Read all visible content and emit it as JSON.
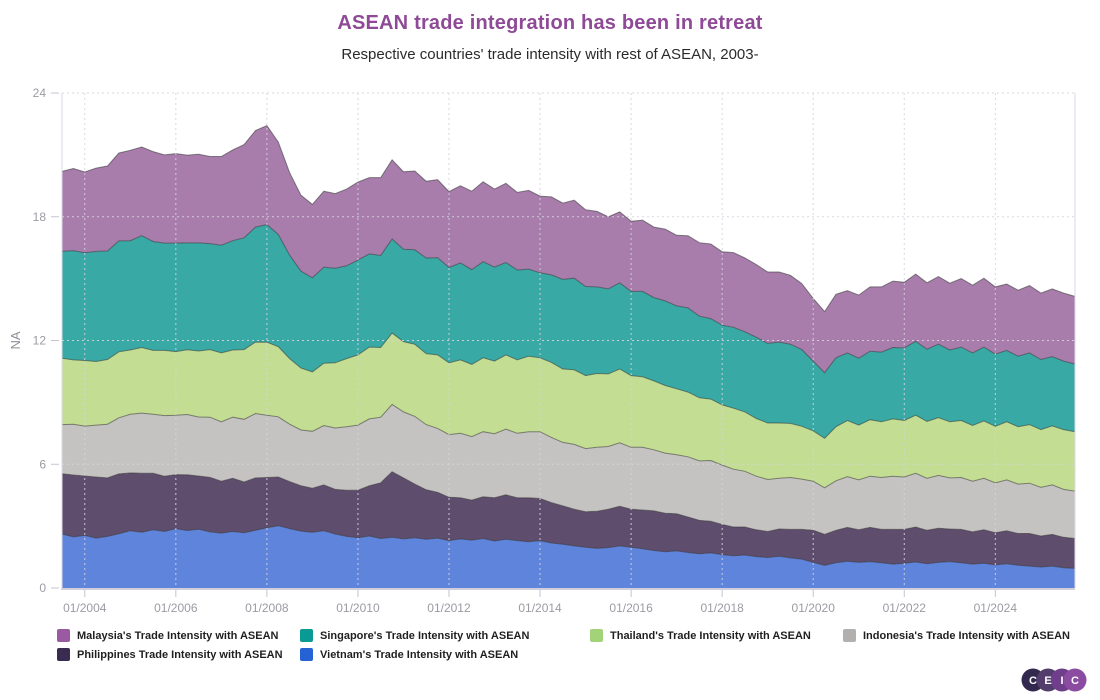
{
  "header": {
    "title": "ASEAN trade integration has been in retreat",
    "subtitle": "Respective countries' trade intensity with rest of ASEAN, 2003-",
    "title_color": "#8e4a96"
  },
  "chart_data": {
    "type": "area",
    "stacked": true,
    "title": "ASEAN trade integration has been in retreat",
    "subtitle": "Respective countries' trade intensity with rest of ASEAN, 2003-",
    "ylabel": "NA",
    "xlabel": "",
    "grid": "dotted",
    "legend_position": "bottom",
    "x_start": 2003.5,
    "x_step": 0.25,
    "x_range": [
      2003.5,
      2025.75
    ],
    "y_range": [
      0,
      24
    ],
    "y_ticks": [
      0,
      6,
      12,
      18,
      24
    ],
    "x_ticks": [
      {
        "value": 2004,
        "label": "01/2004"
      },
      {
        "value": 2006,
        "label": "01/2006"
      },
      {
        "value": 2008,
        "label": "01/2008"
      },
      {
        "value": 2010,
        "label": "01/2010"
      },
      {
        "value": 2012,
        "label": "01/2012"
      },
      {
        "value": 2014,
        "label": "01/2014"
      },
      {
        "value": 2016,
        "label": "01/2016"
      },
      {
        "value": 2018,
        "label": "01/2018"
      },
      {
        "value": 2020,
        "label": "01/2020"
      },
      {
        "value": 2022,
        "label": "01/2022"
      },
      {
        "value": 2024,
        "label": "01/2024"
      }
    ],
    "axis_colors": {
      "tick_label": "#9b9ba3",
      "axis_line": "#dcd9e4",
      "bottom_line": "#d2cfdd",
      "tick_mark": "#c6c3d0",
      "gridline": "#d6d3de",
      "band_outline": "rgba(50,50,50,0.55)"
    },
    "stack_order_bottom_to_top": [
      "Vietnam's Trade Intensity with ASEAN",
      "Philippines Trade Intensity with ASEAN",
      "Indonesia's Trade Intensity with ASEAN",
      "Thailand's Trade Intensity with ASEAN",
      "Singapore's Trade Intensity with ASEAN",
      "Malaysia's Trade Intensity with ASEAN"
    ],
    "series": [
      {
        "name": "Malaysia's Trade Intensity with ASEAN",
        "color": "#9a5aa2",
        "fill": "#a87dac",
        "values": [
          3.88,
          3.98,
          3.92,
          4.04,
          4.12,
          4.26,
          4.38,
          4.3,
          4.36,
          4.28,
          4.34,
          4.26,
          4.3,
          4.22,
          4.3,
          4.4,
          4.52,
          4.68,
          4.8,
          4.48,
          4.0,
          3.68,
          3.56,
          3.68,
          3.62,
          3.72,
          3.78,
          3.7,
          3.78,
          3.84,
          3.76,
          3.82,
          3.72,
          3.78,
          3.68,
          3.74,
          3.8,
          3.88,
          3.78,
          3.84,
          3.76,
          3.82,
          3.72,
          3.78,
          3.7,
          3.78,
          3.72,
          3.66,
          3.5,
          3.44,
          3.4,
          3.46,
          3.42,
          3.48,
          3.42,
          3.5,
          3.56,
          3.62,
          3.56,
          3.62,
          3.58,
          3.52,
          3.46,
          3.4,
          3.34,
          3.2,
          3.04,
          2.96,
          3.08,
          3.02,
          3.06,
          3.12,
          3.16,
          3.22,
          3.18,
          3.26,
          3.22,
          3.28,
          3.24,
          3.32,
          3.28,
          3.34,
          3.26,
          3.22,
          3.2,
          3.26,
          3.22,
          3.28,
          3.3,
          3.28
        ]
      },
      {
        "name": "Singapore's Trade Intensity with ASEAN",
        "color": "#0a9a94",
        "fill": "#38a9a4",
        "values": [
          5.18,
          5.3,
          5.22,
          5.34,
          5.26,
          5.38,
          5.3,
          5.42,
          5.28,
          5.2,
          5.26,
          5.18,
          5.24,
          5.14,
          5.22,
          5.3,
          5.42,
          5.58,
          5.7,
          5.44,
          5.02,
          4.7,
          4.56,
          4.66,
          4.58,
          4.5,
          4.6,
          4.52,
          4.46,
          4.56,
          4.48,
          4.58,
          4.64,
          4.72,
          4.62,
          4.7,
          4.6,
          4.66,
          4.56,
          4.48,
          4.36,
          4.22,
          4.12,
          4.24,
          4.34,
          4.44,
          4.32,
          4.2,
          4.12,
          4.18,
          4.08,
          4.14,
          4.04,
          4.1,
          4.02,
          4.08,
          3.96,
          3.9,
          3.86,
          3.92,
          3.88,
          3.94,
          3.86,
          3.92,
          3.84,
          3.72,
          3.38,
          3.18,
          3.34,
          3.28,
          3.24,
          3.32,
          3.38,
          3.46,
          3.52,
          3.58,
          3.5,
          3.56,
          3.48,
          3.56,
          3.52,
          3.58,
          3.5,
          3.46,
          3.42,
          3.48,
          3.4,
          3.36,
          3.32,
          3.28
        ]
      },
      {
        "name": "Thailand's Trade Intensity with ASEAN",
        "color": "#a3d378",
        "fill": "#c3de92",
        "values": [
          3.22,
          3.12,
          3.18,
          3.08,
          3.14,
          3.2,
          3.12,
          3.18,
          3.1,
          3.16,
          3.08,
          3.14,
          3.2,
          3.28,
          3.34,
          3.26,
          3.38,
          3.46,
          3.54,
          3.4,
          3.18,
          3.0,
          2.88,
          3.02,
          3.16,
          3.3,
          3.4,
          3.48,
          3.38,
          3.46,
          3.4,
          3.5,
          3.44,
          3.56,
          3.48,
          3.56,
          3.5,
          3.58,
          3.52,
          3.6,
          3.56,
          3.66,
          3.58,
          3.64,
          3.56,
          3.62,
          3.54,
          3.58,
          3.52,
          3.58,
          3.48,
          3.42,
          3.34,
          3.28,
          3.2,
          3.14,
          3.06,
          2.98,
          2.92,
          2.96,
          2.88,
          2.8,
          2.74,
          2.68,
          2.62,
          2.56,
          2.44,
          2.4,
          2.62,
          2.72,
          2.66,
          2.74,
          2.7,
          2.78,
          2.74,
          2.82,
          2.76,
          2.8,
          2.72,
          2.76,
          2.7,
          2.78,
          2.74,
          2.82,
          2.78,
          2.84,
          2.8,
          2.86,
          2.9,
          2.88
        ]
      },
      {
        "name": "Indonesia's Trade Intensity with ASEAN",
        "color": "#b2b0ae",
        "fill": "#c5c3c1",
        "values": [
          2.38,
          2.46,
          2.42,
          2.52,
          2.6,
          2.72,
          2.84,
          2.92,
          2.86,
          2.94,
          2.88,
          2.92,
          2.86,
          2.92,
          2.88,
          2.96,
          3.04,
          3.12,
          3.02,
          2.92,
          2.78,
          2.7,
          2.76,
          2.88,
          2.98,
          3.08,
          3.16,
          3.24,
          3.18,
          3.26,
          3.2,
          3.28,
          3.16,
          3.1,
          3.04,
          3.12,
          3.08,
          3.16,
          3.1,
          3.18,
          3.12,
          3.2,
          3.24,
          3.16,
          3.08,
          3.14,
          3.06,
          3.1,
          3.04,
          3.08,
          3.0,
          3.04,
          2.96,
          2.92,
          2.86,
          2.92,
          2.88,
          2.94,
          2.88,
          2.8,
          2.7,
          2.6,
          2.52,
          2.46,
          2.52,
          2.44,
          2.38,
          2.26,
          2.4,
          2.46,
          2.42,
          2.48,
          2.52,
          2.58,
          2.54,
          2.6,
          2.52,
          2.56,
          2.48,
          2.52,
          2.46,
          2.5,
          2.42,
          2.46,
          2.4,
          2.44,
          2.36,
          2.4,
          2.32,
          2.3
        ]
      },
      {
        "name": "Philippines Trade Intensity with ASEAN",
        "color": "#3a2b52",
        "fill": "#5f4d6e",
        "values": [
          2.92,
          3.0,
          2.88,
          2.96,
          2.84,
          2.9,
          2.8,
          2.86,
          2.74,
          2.68,
          2.62,
          2.7,
          2.58,
          2.64,
          2.52,
          2.58,
          2.46,
          2.54,
          2.44,
          2.36,
          2.28,
          2.2,
          2.14,
          2.22,
          2.16,
          2.24,
          2.3,
          2.44,
          2.7,
          3.18,
          2.96,
          2.6,
          2.4,
          2.22,
          2.1,
          2.0,
          1.94,
          2.02,
          2.1,
          2.16,
          2.08,
          2.14,
          2.04,
          1.96,
          1.86,
          1.78,
          1.72,
          1.8,
          1.86,
          1.92,
          1.84,
          1.88,
          1.92,
          1.86,
          1.8,
          1.72,
          1.62,
          1.54,
          1.46,
          1.4,
          1.36,
          1.3,
          1.26,
          1.32,
          1.38,
          1.44,
          1.56,
          1.5,
          1.58,
          1.64,
          1.58,
          1.66,
          1.62,
          1.68,
          1.64,
          1.7,
          1.62,
          1.66,
          1.58,
          1.62,
          1.56,
          1.62,
          1.56,
          1.6,
          1.54,
          1.58,
          1.5,
          1.54,
          1.48,
          1.45
        ]
      },
      {
        "name": "Vietnam's Trade Intensity with ASEAN",
        "color": "#2563d4",
        "fill": "#5f84dc",
        "values": [
          2.62,
          2.48,
          2.55,
          2.42,
          2.5,
          2.63,
          2.78,
          2.7,
          2.82,
          2.74,
          2.88,
          2.79,
          2.85,
          2.72,
          2.66,
          2.74,
          2.68,
          2.8,
          2.92,
          3.02,
          2.88,
          2.76,
          2.7,
          2.78,
          2.62,
          2.5,
          2.44,
          2.52,
          2.4,
          2.46,
          2.38,
          2.44,
          2.36,
          2.42,
          2.3,
          2.38,
          2.32,
          2.4,
          2.28,
          2.36,
          2.3,
          2.24,
          2.3,
          2.18,
          2.12,
          2.04,
          1.98,
          1.92,
          1.96,
          2.04,
          1.98,
          1.9,
          1.82,
          1.76,
          1.8,
          1.72,
          1.66,
          1.7,
          1.62,
          1.56,
          1.6,
          1.52,
          1.48,
          1.54,
          1.46,
          1.4,
          1.24,
          1.1,
          1.22,
          1.3,
          1.24,
          1.28,
          1.22,
          1.16,
          1.2,
          1.26,
          1.18,
          1.24,
          1.28,
          1.22,
          1.16,
          1.2,
          1.12,
          1.18,
          1.1,
          1.06,
          1.02,
          1.06,
          0.98,
          0.95
        ]
      }
    ]
  },
  "branding": {
    "logo_letters": [
      "C",
      "E",
      "I",
      "C"
    ],
    "logo_colors": [
      "#33294f",
      "#533d6d",
      "#6f3f8b",
      "#8a4ba1"
    ]
  }
}
